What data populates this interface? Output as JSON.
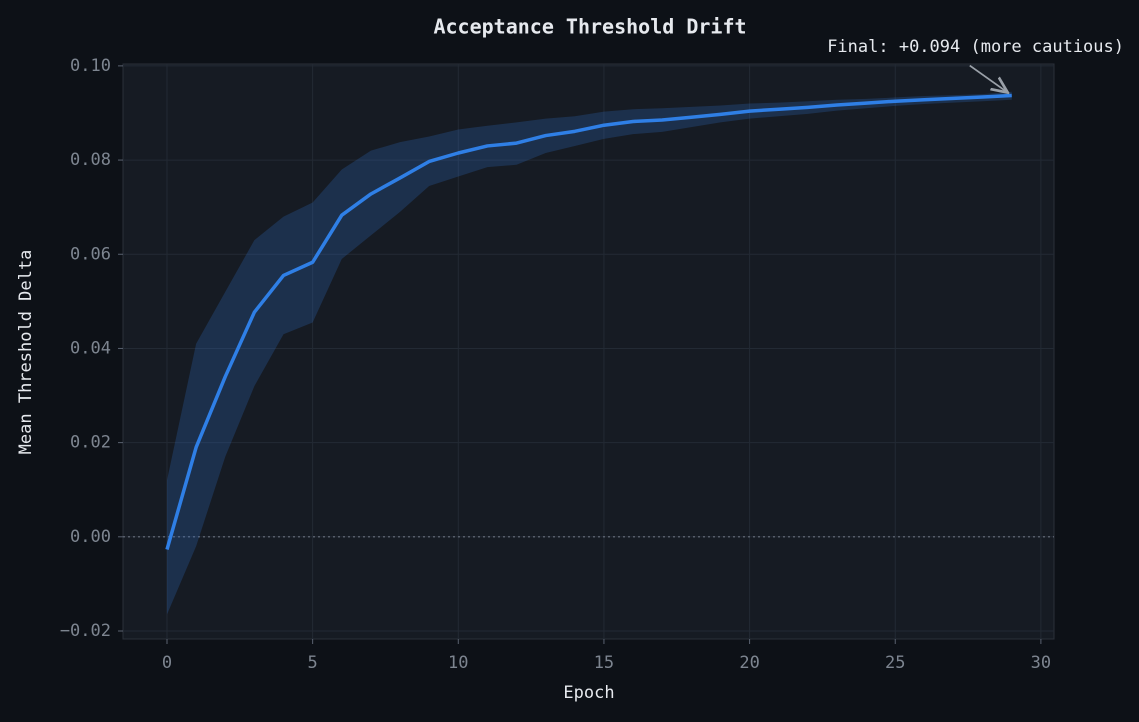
{
  "chart_data": {
    "type": "line",
    "title": "Acceptance Threshold Drift",
    "xlabel": "Epoch",
    "ylabel": "Mean Threshold Delta",
    "x": [
      0,
      1,
      2,
      3,
      4,
      5,
      6,
      7,
      8,
      9,
      10,
      11,
      12,
      13,
      14,
      15,
      16,
      17,
      18,
      19,
      20,
      21,
      22,
      23,
      24,
      25,
      26,
      27,
      28,
      29
    ],
    "series": [
      {
        "color": "#2f7fe6",
        "band_color": "#2f6fc8",
        "values": [
          -0.0027,
          0.019,
          0.034,
          0.0477,
          0.0555,
          0.0583,
          0.0683,
          0.0728,
          0.0762,
          0.0797,
          0.0815,
          0.083,
          0.0836,
          0.0852,
          0.0861,
          0.0874,
          0.0882,
          0.0885,
          0.0891,
          0.0897,
          0.0904,
          0.0908,
          0.0912,
          0.0917,
          0.0921,
          0.0925,
          0.0928,
          0.0931,
          0.0934,
          0.0937
        ],
        "upper": [
          0.012,
          0.041,
          0.052,
          0.063,
          0.068,
          0.071,
          0.078,
          0.082,
          0.0838,
          0.085,
          0.0865,
          0.0873,
          0.088,
          0.0888,
          0.0893,
          0.0903,
          0.0908,
          0.091,
          0.0913,
          0.0916,
          0.092,
          0.0922,
          0.0925,
          0.0928,
          0.093,
          0.0933,
          0.0936,
          0.0938,
          0.094,
          0.0945
        ],
        "lower": [
          -0.0165,
          -0.002,
          0.017,
          0.032,
          0.043,
          0.0455,
          0.059,
          0.064,
          0.069,
          0.0745,
          0.0765,
          0.0785,
          0.079,
          0.0815,
          0.083,
          0.0845,
          0.0855,
          0.086,
          0.087,
          0.088,
          0.0888,
          0.0893,
          0.0898,
          0.0905,
          0.091,
          0.0915,
          0.0919,
          0.0922,
          0.0925,
          0.0928
        ]
      }
    ],
    "annotation": {
      "text": "Final: +0.094 (more cautious)"
    },
    "xlim": [
      -1.51,
      30.45
    ],
    "ylim": [
      -0.0217,
      0.1004
    ],
    "xticks": [
      0,
      5,
      10,
      15,
      20,
      25,
      30
    ],
    "yticks": [
      {
        "value": -0.02,
        "label": "−0.02"
      },
      {
        "value": 0,
        "label": "0.00"
      },
      {
        "value": 0.02,
        "label": "0.02"
      },
      {
        "value": 0.04,
        "label": "0.04"
      },
      {
        "value": 0.06,
        "label": "0.06"
      },
      {
        "value": 0.08,
        "label": "0.08"
      },
      {
        "value": 0.1,
        "label": "0.10"
      }
    ],
    "grid": true,
    "zero_line": true
  }
}
